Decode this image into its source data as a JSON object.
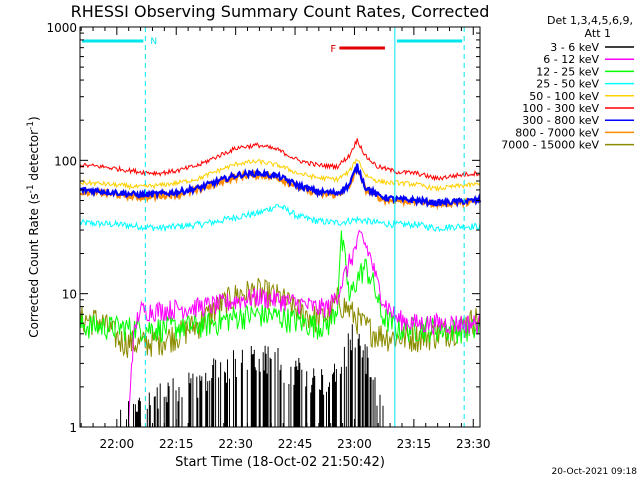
{
  "chart_data": {
    "type": "line",
    "title": "RHESSI Observing Summary Count Rates, Corrected",
    "xlabel": "Start Time (18-Oct-02 21:50:42)",
    "ylabel_main": "Corrected Count Rate (s",
    "ylabel_sup1": "-1",
    "ylabel_mid": " detector",
    "ylabel_sup2": "-1",
    "ylabel_end": ")",
    "y_scale": "log",
    "ylim": [
      1,
      1000
    ],
    "xlim_minutes": [
      0,
      101
    ],
    "xticks": [
      {
        "label": "22:00",
        "minutes": 9.3
      },
      {
        "label": "22:15",
        "minutes": 24.3
      },
      {
        "label": "22:30",
        "minutes": 39.3
      },
      {
        "label": "22:45",
        "minutes": 54.3
      },
      {
        "label": "23:00",
        "minutes": 69.3
      },
      {
        "label": "23:15",
        "minutes": 84.3
      },
      {
        "label": "23:30",
        "minutes": 99.3
      }
    ],
    "yticks": [
      {
        "label": "1",
        "value": 1
      },
      {
        "label": "10",
        "value": 10
      },
      {
        "label": "100",
        "value": 100
      },
      {
        "label": "1000",
        "value": 1000
      }
    ],
    "legend_header": [
      "Det 1,3,4,5,6,9,",
      "Att 1"
    ],
    "legend_position": "right",
    "annotations": {
      "night_label": "N",
      "flare_label": "F",
      "night_color": "#00e5ee",
      "flare_color": "#e00000"
    },
    "night_intervals_minutes": [
      [
        0,
        16.5
      ],
      [
        79.5,
        97
      ]
    ],
    "flare_interval_minutes": [
      65.5,
      77
    ],
    "footer_date": "20-Oct-2021 09:18",
    "series": [
      {
        "name": "3 - 6 keV",
        "color": "#000000",
        "x": [
          0,
          10,
          15,
          20,
          25,
          30,
          35,
          40,
          45,
          50,
          55,
          60,
          65,
          67,
          69,
          71,
          73,
          75,
          80,
          90,
          100
        ],
        "y": [
          0,
          1,
          1.3,
          1.5,
          1.8,
          2.0,
          2.5,
          2.8,
          3.0,
          2.8,
          2.4,
          2.0,
          2.2,
          3.0,
          5.0,
          4.0,
          2.5,
          1.6,
          0,
          0,
          0
        ]
      },
      {
        "name": "6 - 12 keV",
        "color": "#ff00ff",
        "x": [
          0,
          8,
          12,
          13.5,
          15,
          20,
          25,
          30,
          35,
          40,
          45,
          50,
          55,
          60,
          63,
          65,
          67,
          69,
          71,
          73,
          75,
          77,
          80,
          85,
          90,
          100
        ],
        "y": [
          0,
          0,
          0,
          4.5,
          7.5,
          7.5,
          7.8,
          8.0,
          8.3,
          9.0,
          9.5,
          9.0,
          8.5,
          7.8,
          8.0,
          10,
          14,
          20,
          27,
          20,
          12,
          8.5,
          6.5,
          6.0,
          6.0,
          6.0
        ]
      },
      {
        "name": "12 - 25 keV",
        "color": "#00ff00",
        "x": [
          0,
          10,
          20,
          30,
          35,
          40,
          45,
          50,
          55,
          60,
          63,
          65,
          66,
          68,
          70,
          72,
          74,
          76,
          80,
          85,
          90,
          95,
          100
        ],
        "y": [
          5.8,
          5.6,
          5.5,
          5.8,
          6.2,
          6.8,
          7.0,
          6.8,
          6.2,
          5.8,
          6.0,
          8.0,
          25,
          9.0,
          13,
          16,
          12,
          7.0,
          5.5,
          5.5,
          5.5,
          5.4,
          5.4
        ]
      },
      {
        "name": "25 - 50 keV",
        "color": "#00ffff",
        "x": [
          0,
          10,
          20,
          30,
          35,
          40,
          45,
          50,
          55,
          60,
          65,
          70,
          75,
          80,
          85,
          90,
          95,
          100
        ],
        "y": [
          34,
          33,
          31,
          33,
          35,
          38,
          40,
          46,
          38,
          35,
          34,
          36,
          34,
          33,
          33,
          31,
          32,
          32
        ]
      },
      {
        "name": "50 - 100 keV",
        "color": "#ffd000",
        "x": [
          0,
          5,
          10,
          15,
          20,
          25,
          30,
          35,
          40,
          45,
          50,
          55,
          60,
          65,
          68,
          70,
          72,
          75,
          78,
          80,
          85,
          90,
          95,
          100
        ],
        "y": [
          68,
          67,
          65,
          63,
          65,
          68,
          73,
          84,
          95,
          98,
          92,
          80,
          74,
          72,
          82,
          103,
          78,
          70,
          68,
          68,
          66,
          61,
          64,
          66
        ]
      },
      {
        "name": "100 - 300 keV",
        "color": "#ff0000",
        "x": [
          0,
          5,
          10,
          15,
          20,
          25,
          30,
          35,
          40,
          45,
          50,
          55,
          60,
          65,
          68,
          70,
          72,
          75,
          78,
          80,
          85,
          90,
          95,
          100
        ],
        "y": [
          92,
          90,
          86,
          82,
          80,
          84,
          92,
          108,
          125,
          130,
          120,
          100,
          92,
          90,
          108,
          142,
          108,
          90,
          85,
          82,
          80,
          73,
          77,
          80
        ]
      },
      {
        "name": "300 - 800 keV",
        "color": "#0000ff",
        "x": [
          0,
          5,
          10,
          15,
          20,
          25,
          30,
          35,
          40,
          45,
          50,
          55,
          60,
          65,
          68,
          70,
          72,
          75,
          78,
          80,
          85,
          90,
          95,
          100
        ],
        "y": [
          60,
          59,
          57,
          55,
          56,
          58,
          62,
          70,
          78,
          80,
          76,
          65,
          58,
          57,
          65,
          90,
          63,
          55,
          52,
          51,
          50,
          48,
          49,
          50
        ]
      },
      {
        "name": "800 - 7000 keV",
        "color": "#ff8c00",
        "x": [
          0,
          5,
          10,
          15,
          20,
          25,
          30,
          35,
          40,
          45,
          50,
          55,
          60,
          65,
          68,
          70,
          72,
          75,
          78,
          80,
          85,
          90,
          95,
          100
        ],
        "y": [
          58,
          57,
          55,
          53,
          54,
          56,
          60,
          68,
          76,
          78,
          74,
          63,
          56,
          55,
          63,
          86,
          61,
          53,
          50,
          50,
          49,
          47,
          48,
          49
        ]
      },
      {
        "name": "7000 - 15000 keV",
        "color": "#8b8b00",
        "x": [
          0,
          5,
          10,
          15,
          20,
          25,
          30,
          35,
          40,
          45,
          50,
          55,
          60,
          63,
          65,
          67,
          69,
          71,
          73,
          75,
          80,
          85,
          90,
          95,
          100
        ],
        "y": [
          6.5,
          6.3,
          4.5,
          4.2,
          4.5,
          5.0,
          6.0,
          8.0,
          10,
          10.5,
          9.5,
          7.5,
          6.5,
          7.0,
          9.0,
          8.0,
          7.0,
          6.0,
          5.5,
          5.0,
          4.7,
          4.8,
          5.0,
          5.5,
          6.5
        ]
      }
    ]
  }
}
